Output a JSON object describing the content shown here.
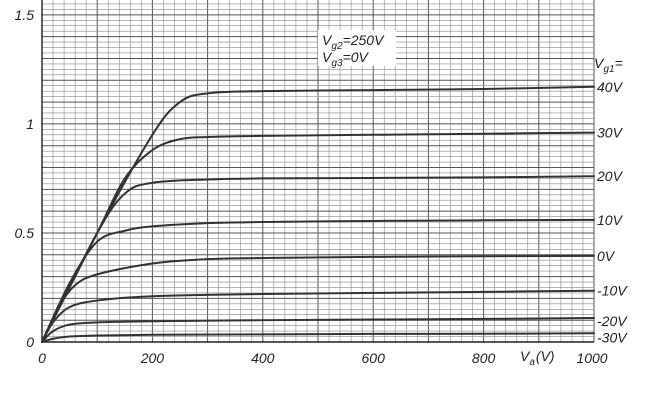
{
  "chart_data": {
    "type": "line",
    "title": "",
    "xlabel_main": "V",
    "xlabel_sub": "a",
    "xlabel_unit": "(V)",
    "ylabel": "",
    "xlim": [
      0,
      1000
    ],
    "ylim": [
      0,
      1.5
    ],
    "grid": true,
    "x_ticks": [
      {
        "value": 0,
        "label": "0"
      },
      {
        "value": 200,
        "label": "200"
      },
      {
        "value": 400,
        "label": "400"
      },
      {
        "value": 600,
        "label": "600"
      },
      {
        "value": 800,
        "label": "800"
      },
      {
        "value": 1000,
        "label": "1000"
      }
    ],
    "y_ticks": [
      {
        "value": 0,
        "label": "0"
      },
      {
        "value": 0.5,
        "label": "0.5"
      },
      {
        "value": 1.0,
        "label": "1"
      },
      {
        "value": 1.5,
        "label": "1.5"
      }
    ],
    "annotation_lines": [
      {
        "main": "V",
        "sub": "g2",
        "rest": "=250V"
      },
      {
        "main": "V",
        "sub": "g3",
        "rest": "=0V"
      }
    ],
    "legend_header": {
      "main": "V",
      "sub": "g1",
      "rest": "="
    },
    "series": [
      {
        "name": "40V",
        "x": [
          0,
          100,
          200,
          250,
          300,
          400,
          600,
          800,
          1000
        ],
        "y": [
          0,
          0.5,
          0.95,
          1.1,
          1.14,
          1.15,
          1.155,
          1.16,
          1.17
        ]
      },
      {
        "name": "30V",
        "x": [
          0,
          100,
          150,
          200,
          250,
          300,
          400,
          600,
          800,
          1000
        ],
        "y": [
          0,
          0.5,
          0.75,
          0.88,
          0.93,
          0.94,
          0.945,
          0.95,
          0.955,
          0.96
        ]
      },
      {
        "name": "20V",
        "x": [
          0,
          100,
          150,
          200,
          300,
          400,
          600,
          800,
          1000
        ],
        "y": [
          0,
          0.5,
          0.68,
          0.73,
          0.745,
          0.75,
          0.752,
          0.755,
          0.76
        ]
      },
      {
        "name": "10V",
        "x": [
          0,
          50,
          100,
          150,
          200,
          300,
          400,
          600,
          800,
          1000
        ],
        "y": [
          0,
          0.27,
          0.46,
          0.51,
          0.53,
          0.545,
          0.55,
          0.555,
          0.558,
          0.56
        ]
      },
      {
        "name": "0V",
        "x": [
          0,
          30,
          60,
          100,
          200,
          300,
          400,
          600,
          800,
          1000
        ],
        "y": [
          0,
          0.16,
          0.26,
          0.31,
          0.36,
          0.38,
          0.385,
          0.39,
          0.393,
          0.395
        ]
      },
      {
        "name": "-10V",
        "x": [
          0,
          20,
          50,
          100,
          200,
          400,
          600,
          800,
          1000
        ],
        "y": [
          0,
          0.09,
          0.16,
          0.19,
          0.21,
          0.22,
          0.225,
          0.23,
          0.235
        ]
      },
      {
        "name": "-20V",
        "x": [
          0,
          20,
          50,
          100,
          200,
          400,
          600,
          800,
          1000
        ],
        "y": [
          0,
          0.05,
          0.08,
          0.09,
          0.095,
          0.1,
          0.103,
          0.106,
          0.11
        ]
      },
      {
        "name": "-30V",
        "x": [
          0,
          20,
          50,
          100,
          200,
          400,
          600,
          800,
          1000
        ],
        "y": [
          0,
          0.015,
          0.025,
          0.03,
          0.033,
          0.035,
          0.037,
          0.038,
          0.04
        ]
      }
    ]
  }
}
